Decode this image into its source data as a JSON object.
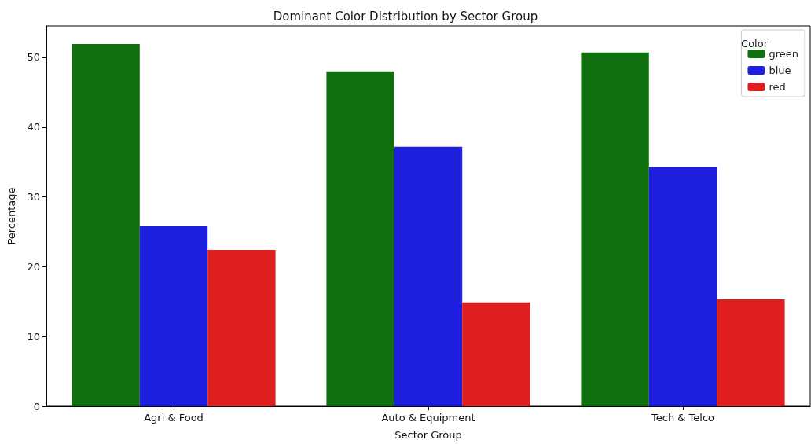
{
  "chart_data": {
    "type": "bar",
    "title": "Dominant Color Distribution by Sector Group",
    "xlabel": "Sector Group",
    "ylabel": "Percentage",
    "legend_title": "Color",
    "categories": [
      "Agri & Food",
      "Auto & Equipment",
      "Tech & Telco"
    ],
    "series": [
      {
        "name": "green",
        "color": "#107010",
        "values": [
          51.9,
          48.0,
          50.7
        ]
      },
      {
        "name": "blue",
        "color": "#1f1fdf",
        "values": [
          25.8,
          37.2,
          34.3
        ]
      },
      {
        "name": "red",
        "color": "#df1f1f",
        "values": [
          22.4,
          14.9,
          15.3
        ]
      }
    ],
    "ylim": [
      0,
      54.5
    ],
    "yticks": [
      0,
      10,
      20,
      30,
      40,
      50
    ],
    "grid": false,
    "legend": "top right"
  }
}
